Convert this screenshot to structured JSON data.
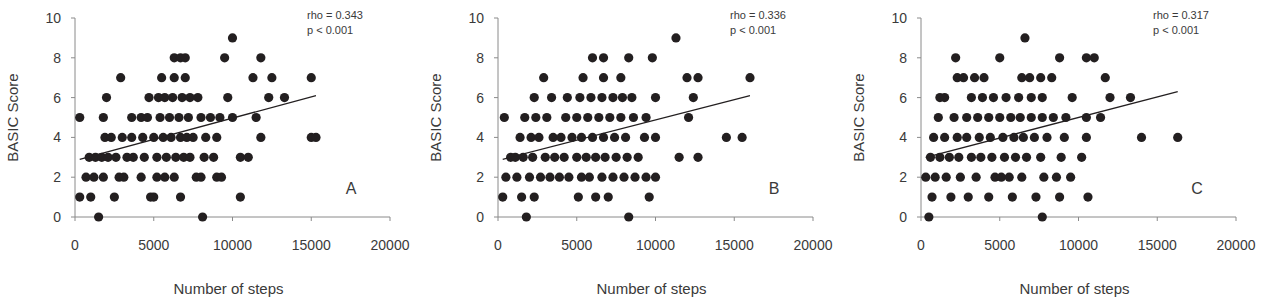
{
  "chart_data": [
    {
      "type": "scatter",
      "x_label": "Number of steps",
      "y_label": "BASIC Score",
      "annotations": [
        "rho = 0.343",
        "p < 0.001",
        "A"
      ],
      "xlim": [
        0,
        20000
      ],
      "ylim": [
        0,
        10
      ],
      "xticks": [
        0,
        5000,
        10000,
        15000,
        20000
      ],
      "yticks": [
        0,
        2,
        4,
        6,
        8,
        10
      ],
      "grid": false,
      "series": [
        {
          "type": "scatter",
          "marker": "circle",
          "color": "#231f20",
          "x": [
            1500,
            8100,
            300,
            1000,
            2500,
            4800,
            5000,
            6700,
            10500,
            700,
            1200,
            1800,
            2800,
            3100,
            4200,
            5200,
            5700,
            6300,
            7700,
            8000,
            9000,
            9300,
            900,
            1300,
            1700,
            2100,
            2600,
            3300,
            3700,
            4400,
            5200,
            5800,
            6400,
            6900,
            7300,
            8200,
            8800,
            10500,
            11000,
            1900,
            2300,
            3000,
            3600,
            4300,
            5000,
            5600,
            6100,
            6700,
            7100,
            7500,
            8300,
            9000,
            11800,
            15000,
            15300,
            300,
            1800,
            3600,
            4200,
            4600,
            5400,
            6000,
            6600,
            7200,
            8000,
            8600,
            9200,
            10000,
            11500,
            2000,
            4700,
            5300,
            5700,
            6200,
            6800,
            7300,
            7800,
            9700,
            12300,
            13300,
            2900,
            5500,
            6300,
            7000,
            11300,
            12500,
            15000,
            6300,
            6700,
            7000,
            9500,
            11800,
            10000
          ],
          "values": [
            0,
            0,
            1,
            1,
            1,
            1,
            1,
            1,
            1,
            2,
            2,
            2,
            2,
            2,
            2,
            2,
            2,
            2,
            2,
            2,
            2,
            2,
            3,
            3,
            3,
            3,
            3,
            3,
            3,
            3,
            3,
            3,
            3,
            3,
            3,
            3,
            3,
            3,
            3,
            4,
            4,
            4,
            4,
            4,
            4,
            4,
            4,
            4,
            4,
            4,
            4,
            4,
            4,
            4,
            4,
            5,
            5,
            5,
            5,
            5,
            5,
            5,
            5,
            5,
            5,
            5,
            5,
            5,
            5,
            6,
            6,
            6,
            6,
            6,
            6,
            6,
            6,
            6,
            6,
            6,
            7,
            7,
            7,
            7,
            7,
            7,
            7,
            8,
            8,
            8,
            8,
            8,
            9
          ]
        },
        {
          "type": "line",
          "line_style": "solid",
          "color": "#231f20",
          "x": [
            300,
            15300
          ],
          "values": [
            2.9,
            6.1
          ]
        }
      ]
    },
    {
      "type": "scatter",
      "x_label": "Number of steps",
      "y_label": "BASIC Score",
      "annotations": [
        "rho = 0.336",
        "p < 0.001",
        "B"
      ],
      "xlim": [
        0,
        20000
      ],
      "ylim": [
        0,
        10
      ],
      "xticks": [
        0,
        5000,
        10000,
        15000,
        20000
      ],
      "yticks": [
        0,
        2,
        4,
        6,
        8,
        10
      ],
      "grid": false,
      "series": [
        {
          "type": "scatter",
          "marker": "circle",
          "color": "#231f20",
          "x": [
            1800,
            8300,
            300,
            1500,
            2300,
            5100,
            6200,
            7000,
            9600,
            500,
            1200,
            2000,
            2700,
            3300,
            3900,
            4500,
            5300,
            5800,
            6600,
            7300,
            8000,
            8700,
            9400,
            10000,
            800,
            1100,
            1600,
            2200,
            3000,
            3600,
            4200,
            5000,
            5600,
            6200,
            6800,
            7500,
            8200,
            8900,
            11500,
            12700,
            1400,
            2100,
            2600,
            3500,
            4000,
            4700,
            5300,
            6000,
            6700,
            7400,
            8100,
            9300,
            10000,
            14500,
            15500,
            400,
            1700,
            2400,
            3100,
            4300,
            5000,
            5700,
            6400,
            7100,
            7800,
            8600,
            9400,
            12100,
            2300,
            3400,
            4400,
            5200,
            5900,
            6600,
            7300,
            7900,
            8500,
            10000,
            12400,
            2900,
            5400,
            6700,
            7800,
            12000,
            12700,
            16000,
            6000,
            6700,
            8300,
            9800,
            11300
          ],
          "values": [
            0,
            0,
            1,
            1,
            1,
            1,
            1,
            1,
            1,
            2,
            2,
            2,
            2,
            2,
            2,
            2,
            2,
            2,
            2,
            2,
            2,
            2,
            2,
            2,
            3,
            3,
            3,
            3,
            3,
            3,
            3,
            3,
            3,
            3,
            3,
            3,
            3,
            3,
            3,
            3,
            4,
            4,
            4,
            4,
            4,
            4,
            4,
            4,
            4,
            4,
            4,
            4,
            4,
            4,
            4,
            5,
            5,
            5,
            5,
            5,
            5,
            5,
            5,
            5,
            5,
            5,
            5,
            5,
            6,
            6,
            6,
            6,
            6,
            6,
            6,
            6,
            6,
            6,
            6,
            7,
            7,
            7,
            7,
            7,
            7,
            7,
            8,
            8,
            8,
            8,
            9
          ]
        },
        {
          "type": "line",
          "line_style": "solid",
          "color": "#231f20",
          "x": [
            300,
            16000
          ],
          "values": [
            2.9,
            6.1
          ]
        }
      ]
    },
    {
      "type": "scatter",
      "x_label": "Number of steps",
      "y_label": "BASIC Score",
      "annotations": [
        "rho = 0.317",
        "p < 0.001",
        "C"
      ],
      "xlim": [
        0,
        20000
      ],
      "ylim": [
        0,
        10
      ],
      "xticks": [
        0,
        5000,
        10000,
        15000,
        20000
      ],
      "yticks": [
        0,
        2,
        4,
        6,
        8,
        10
      ],
      "grid": false,
      "series": [
        {
          "type": "scatter",
          "marker": "circle",
          "color": "#231f20",
          "x": [
            500,
            7700,
            700,
            1900,
            3000,
            4300,
            5800,
            7300,
            8800,
            10600,
            300,
            900,
            1600,
            2500,
            3500,
            4700,
            5100,
            5600,
            6400,
            7800,
            8600,
            9500,
            600,
            1200,
            1800,
            2400,
            3200,
            3800,
            4500,
            5300,
            6000,
            6700,
            7600,
            8900,
            10200,
            800,
            1500,
            2300,
            2900,
            3700,
            4400,
            5200,
            5900,
            6500,
            7200,
            8000,
            9100,
            10500,
            14000,
            16300,
            1100,
            2100,
            2900,
            3600,
            4300,
            5000,
            5700,
            6300,
            7000,
            7700,
            8400,
            9200,
            10500,
            11400,
            1200,
            1500,
            3200,
            3900,
            4600,
            5400,
            6200,
            7000,
            7700,
            9600,
            12000,
            13300,
            2300,
            2700,
            3400,
            4000,
            6400,
            6900,
            7600,
            8300,
            11700,
            2200,
            5000,
            8800,
            10500,
            11000,
            6600
          ],
          "values": [
            0,
            0,
            1,
            1,
            1,
            1,
            1,
            1,
            1,
            1,
            2,
            2,
            2,
            2,
            2,
            2,
            2,
            2,
            2,
            2,
            2,
            2,
            3,
            3,
            3,
            3,
            3,
            3,
            3,
            3,
            3,
            3,
            3,
            3,
            3,
            4,
            4,
            4,
            4,
            4,
            4,
            4,
            4,
            4,
            4,
            4,
            4,
            4,
            4,
            4,
            5,
            5,
            5,
            5,
            5,
            5,
            5,
            5,
            5,
            5,
            5,
            5,
            5,
            5,
            6,
            6,
            6,
            6,
            6,
            6,
            6,
            6,
            6,
            6,
            6,
            6,
            7,
            7,
            7,
            7,
            7,
            7,
            7,
            7,
            7,
            8,
            8,
            8,
            8,
            8,
            9
          ]
        },
        {
          "type": "line",
          "line_style": "solid",
          "color": "#231f20",
          "x": [
            300,
            16300
          ],
          "values": [
            3.0,
            6.3
          ]
        }
      ]
    }
  ]
}
